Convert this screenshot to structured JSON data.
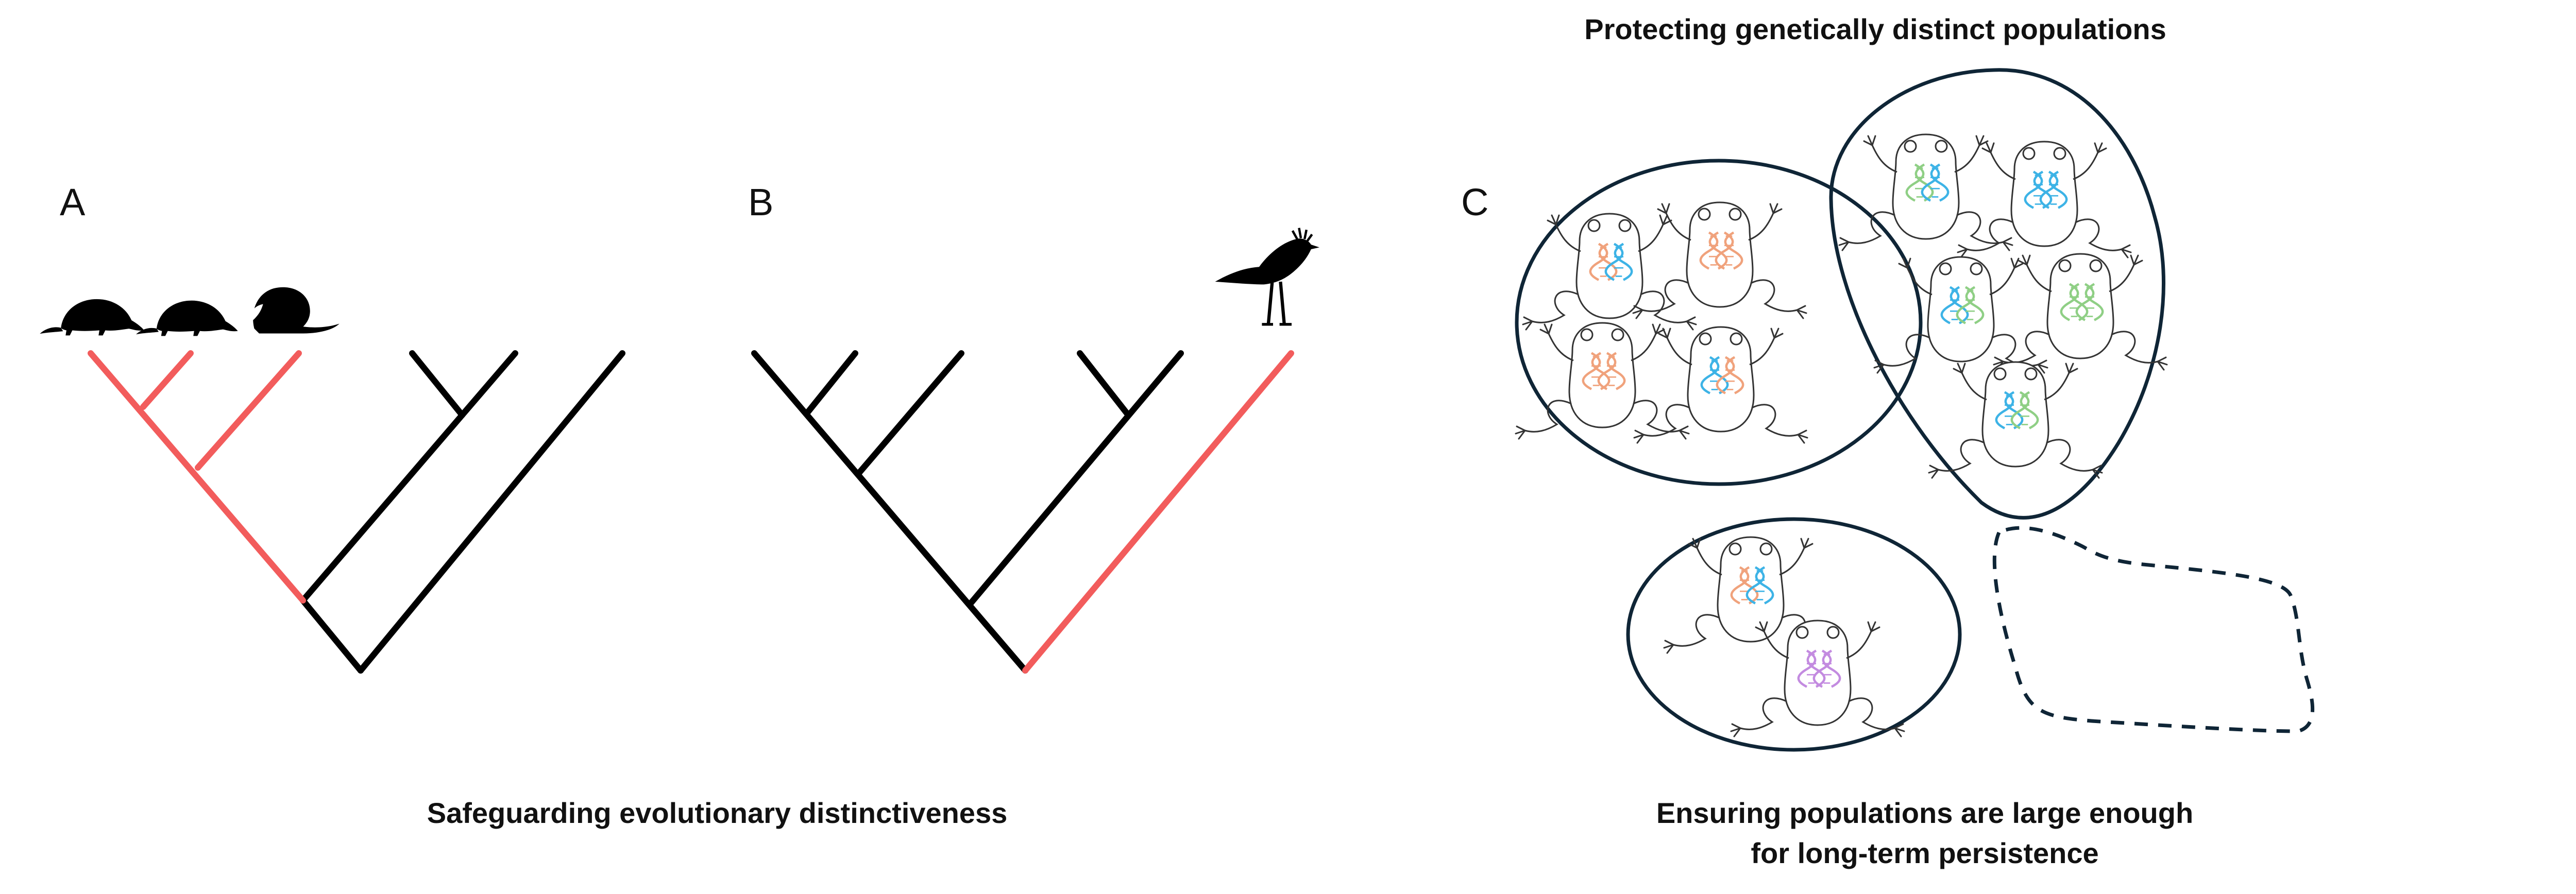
{
  "panels": {
    "a": {
      "letter": "A"
    },
    "b": {
      "letter": "B"
    },
    "c": {
      "letter": "C"
    }
  },
  "captions": {
    "top_right": "Protecting genetically distinct populations",
    "bottom_left": "Safeguarding evolutionary distinctiveness",
    "bottom_right_line1": "Ensuring populations are large enough",
    "bottom_right_line2": "for long-term persistence"
  },
  "colors": {
    "highlight_branch": "#f25c5c",
    "branch": "#000000",
    "outline": "#0f2536",
    "dna_blue": "#3db3e6",
    "dna_orange": "#f0a27c",
    "dna_green": "#8fcf85",
    "dna_purple": "#c38be0"
  },
  "icons": {
    "pangolin": "pangolin-silhouette-icon",
    "secretary_bird": "secretary-bird-silhouette-icon",
    "frog": "frog-outline-icon",
    "dna": "dna-helix-icon"
  }
}
